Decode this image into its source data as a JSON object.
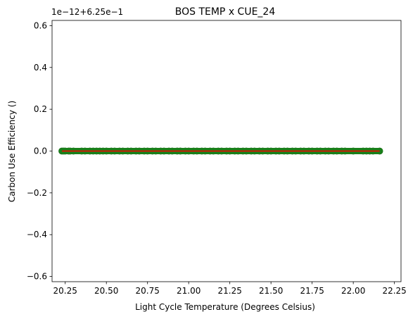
{
  "chart_data": {
    "type": "scatter",
    "title": "BOS TEMP x CUE_24",
    "xlabel": "Light Cycle Temperature (Degrees Celsius)",
    "ylabel": "Carbon Use Efficiency ()",
    "offset_text": "1e−12+6.25e−1",
    "xlim": [
      20.17,
      22.29
    ],
    "ylim": [
      -0.625,
      0.625
    ],
    "y_unit_note": "y tick values are offsets from 0.625 in units of 1e-12",
    "x_ticks": [
      20.25,
      20.5,
      20.75,
      21.0,
      21.25,
      21.5,
      21.75,
      22.0,
      22.25
    ],
    "x_tick_labels": [
      "20.25",
      "20.50",
      "20.75",
      "21.00",
      "21.25",
      "21.50",
      "21.75",
      "22.00",
      "22.25"
    ],
    "y_ticks": [
      -0.6,
      -0.4,
      -0.2,
      0.0,
      0.2,
      0.4,
      0.6
    ],
    "y_tick_labels": [
      "−0.6",
      "−0.4",
      "−0.2",
      "0.0",
      "0.2",
      "0.4",
      "0.6"
    ],
    "grid": false,
    "series": [
      {
        "marker_color": "#1a7f1a",
        "marker_edge": "#0b5d0b",
        "x_range": [
          20.23,
          22.16
        ],
        "y_value": 0.0,
        "x_points": [
          20.23,
          20.24,
          20.25,
          20.27,
          20.28,
          20.3,
          20.35,
          20.37,
          20.4,
          20.42,
          20.44,
          20.46,
          20.48,
          20.5,
          20.53,
          20.55,
          20.58,
          20.6,
          20.63,
          20.65,
          20.68,
          20.7,
          20.73,
          20.75,
          20.78,
          20.8,
          20.83,
          20.85,
          20.88,
          20.9,
          20.93,
          20.95,
          20.98,
          21.0,
          21.03,
          21.05,
          21.08,
          21.1,
          21.13,
          21.15,
          21.18,
          21.2,
          21.23,
          21.25,
          21.28,
          21.3,
          21.33,
          21.35,
          21.38,
          21.4,
          21.43,
          21.45,
          21.48,
          21.5,
          21.53,
          21.55,
          21.58,
          21.6,
          21.63,
          21.65,
          21.68,
          21.7,
          21.73,
          21.75,
          21.78,
          21.8,
          21.83,
          21.85,
          21.88,
          21.9,
          21.93,
          21.95,
          22.0,
          22.06,
          22.08,
          22.1,
          22.12,
          22.16
        ]
      },
      {
        "line_color": "#ff0000",
        "x_range": [
          20.23,
          22.16
        ],
        "y_value": 0.0
      }
    ]
  }
}
